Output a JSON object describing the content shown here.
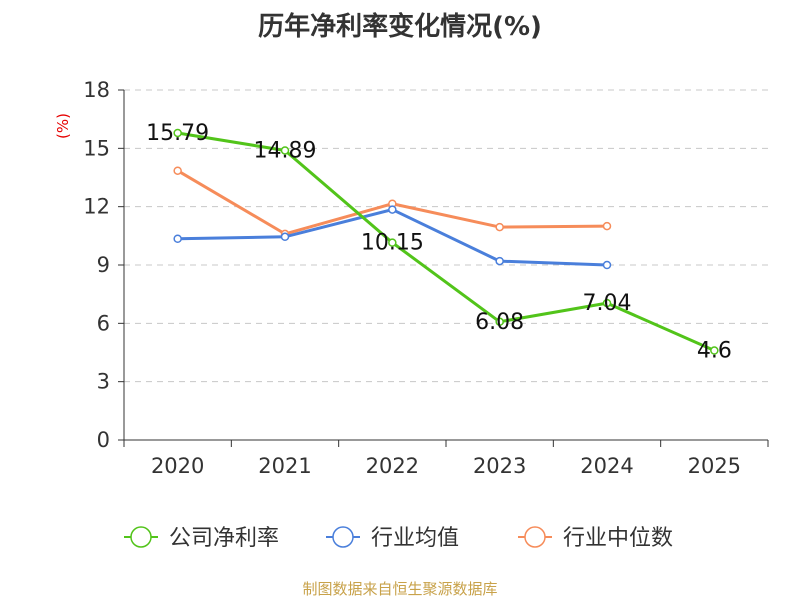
{
  "chart_data": {
    "type": "line",
    "title": "历年净利率变化情况(%)",
    "ylabel": "(%)",
    "xlabel": "",
    "categories": [
      "2020",
      "2021",
      "2022",
      "2023",
      "2024",
      "2025"
    ],
    "ylim": [
      0,
      18
    ],
    "yticks": [
      0,
      3,
      6,
      9,
      12,
      15,
      18
    ],
    "grid": true,
    "legend_position": "bottom",
    "series": [
      {
        "name": "公司净利率",
        "color": "#52c41a",
        "values": [
          15.79,
          14.89,
          10.15,
          6.08,
          7.04,
          4.6
        ],
        "labels": [
          "15.79",
          "14.89",
          "10.15",
          "6.08",
          "7.04",
          "4.6"
        ]
      },
      {
        "name": "行业均值",
        "color": "#4a7fdb",
        "values": [
          10.35,
          10.45,
          11.85,
          9.2,
          9.0,
          null
        ]
      },
      {
        "name": "行业中位数",
        "color": "#f68c5a",
        "values": [
          13.85,
          10.6,
          12.15,
          10.95,
          11.0,
          null
        ]
      }
    ]
  },
  "source": "制图数据来自恒生聚源数据库"
}
